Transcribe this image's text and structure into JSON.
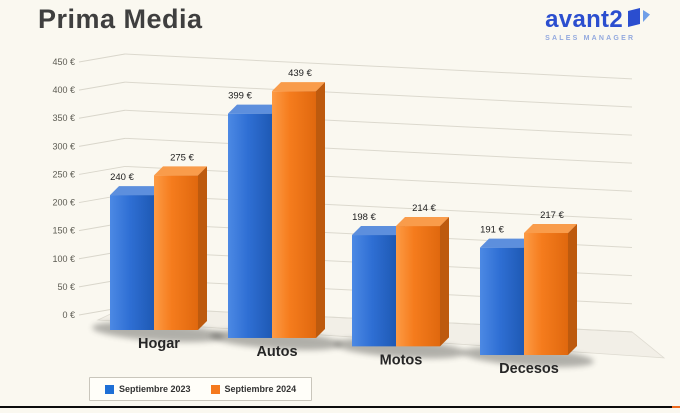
{
  "title": "Prima Media",
  "logo": {
    "brand": "avant2",
    "tagline": "SALES MANAGER",
    "brand_color": "#2b4ecf",
    "tagline_color": "#93a9de"
  },
  "colors": {
    "background": "#faf8f0",
    "title_text": "#3f3f3f",
    "axis_text": "#5c5b52",
    "gridline": "#dcd9ce",
    "bar_blue": "#2e6fd2",
    "bar_orange": "#f5791d"
  },
  "chart_data": {
    "type": "bar",
    "style": "3d-clustered-column",
    "title": "Prima Media",
    "categories": [
      "Hogar",
      "Autos",
      "Motos",
      "Decesos"
    ],
    "series": [
      {
        "name": "Septiembre 2023",
        "color": "#1e6fd6",
        "values": [
          240,
          399,
          198,
          191
        ]
      },
      {
        "name": "Septiembre 2024",
        "color": "#f5791d",
        "values": [
          275,
          439,
          214,
          217
        ]
      }
    ],
    "value_labels": [
      [
        "240 €",
        "399 €",
        "198 €",
        "191 €"
      ],
      [
        "275 €",
        "439 €",
        "214 €",
        "217 €"
      ]
    ],
    "unit": "€",
    "y_ticks": [
      "0 €",
      "50 €",
      "100 €",
      "150 €",
      "200 €",
      "250 €",
      "300 €",
      "350 €",
      "400 €",
      "450 €"
    ],
    "ylim": [
      0,
      450
    ],
    "xlabel": "",
    "ylabel": "",
    "grid": true,
    "legend_position": "bottom-left"
  }
}
